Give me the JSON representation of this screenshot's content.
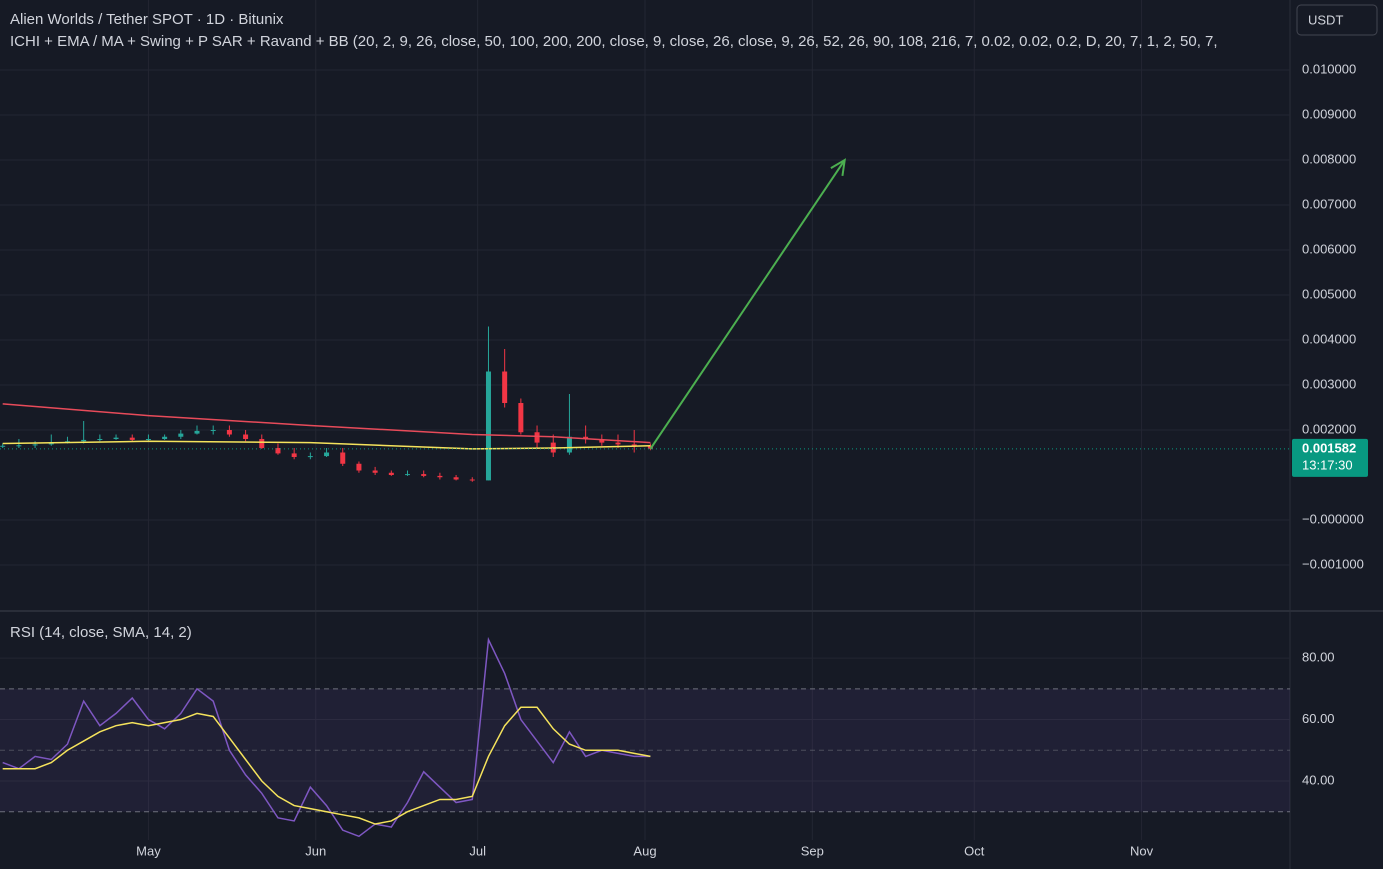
{
  "header": {
    "title": "Alien Worlds / Tether SPOT · 1D · Bitunix",
    "indicators": "ICHI + EMA / MA + Swing + P SAR + Ravand  + BB  (20, 2, 9, 26, close, 50, 100, 200, 200, close, 9, close, 26, close, 9, 26, 52, 26, 90, 108, 216, 7, 0.02, 0.02, 0.2, D, 20, 7, 1, 2, 50, 7,",
    "currency": "USDT"
  },
  "chart_data": [
    {
      "type": "candlestick",
      "x": [
        -27,
        -24,
        -21,
        -18,
        -15,
        -12,
        -9,
        -6,
        -3,
        0,
        3,
        6,
        9,
        12,
        15,
        18,
        21,
        24,
        27,
        30,
        33,
        36,
        39,
        42,
        45,
        48,
        51,
        54,
        57,
        60,
        63,
        66,
        69,
        72,
        75,
        78,
        81,
        84,
        87,
        90,
        93
      ],
      "open": [
        0.00163,
        0.00165,
        0.00166,
        0.00168,
        0.00172,
        0.00175,
        0.00178,
        0.0018,
        0.00183,
        0.00178,
        0.0018,
        0.00185,
        0.00192,
        0.00198,
        0.002,
        0.0019,
        0.0018,
        0.0016,
        0.00148,
        0.0014,
        0.00142,
        0.0015,
        0.00125,
        0.0011,
        0.00105,
        0.001,
        0.00102,
        0.00098,
        0.00095,
        0.0009,
        0.00088,
        0.0033,
        0.0026,
        0.00195,
        0.00172,
        0.0015,
        0.00185,
        0.0018,
        0.00172,
        0.00168,
        0.00165
      ],
      "high": [
        0.0017,
        0.0018,
        0.00175,
        0.0019,
        0.00185,
        0.0022,
        0.0019,
        0.0019,
        0.0019,
        0.0019,
        0.0019,
        0.002,
        0.0021,
        0.0021,
        0.0021,
        0.002,
        0.0019,
        0.0017,
        0.0016,
        0.0015,
        0.0016,
        0.0016,
        0.0013,
        0.00118,
        0.0011,
        0.0011,
        0.0011,
        0.00105,
        0.001,
        0.00095,
        0.0043,
        0.0038,
        0.0027,
        0.0021,
        0.0019,
        0.0028,
        0.0021,
        0.0019,
        0.0019,
        0.002,
        0.0017
      ],
      "low": [
        0.0016,
        0.0016,
        0.0016,
        0.00165,
        0.0017,
        0.0017,
        0.00175,
        0.00178,
        0.00175,
        0.00175,
        0.00178,
        0.0018,
        0.0019,
        0.0019,
        0.00185,
        0.00175,
        0.00158,
        0.00145,
        0.00135,
        0.00135,
        0.0014,
        0.0012,
        0.00105,
        0.001,
        0.00098,
        0.00098,
        0.00095,
        0.0009,
        0.00088,
        0.00085,
        0.00088,
        0.0025,
        0.0019,
        0.0016,
        0.0014,
        0.00145,
        0.0017,
        0.00165,
        0.0016,
        0.0015,
        0.00155
      ],
      "close": [
        0.00165,
        0.00166,
        0.00168,
        0.00172,
        0.00175,
        0.00178,
        0.0018,
        0.00183,
        0.00178,
        0.0018,
        0.00185,
        0.00192,
        0.00198,
        0.002,
        0.0019,
        0.0018,
        0.0016,
        0.00148,
        0.0014,
        0.00142,
        0.0015,
        0.00125,
        0.0011,
        0.00105,
        0.001,
        0.00102,
        0.00098,
        0.00095,
        0.0009,
        0.00088,
        0.0033,
        0.0026,
        0.00195,
        0.00172,
        0.0015,
        0.00185,
        0.0018,
        0.00172,
        0.00168,
        0.00165,
        0.001582
      ],
      "up_color": "#26a69a",
      "down_color": "#f23645",
      "overlays": [
        {
          "color": "#e84b5a",
          "x": [
            -27,
            0,
            30,
            60,
            75,
            93
          ],
          "values": [
            0.00258,
            0.00232,
            0.0021,
            0.0019,
            0.00185,
            0.00172
          ]
        },
        {
          "color": "#f5e35c",
          "x": [
            -27,
            0,
            30,
            60,
            75,
            93
          ],
          "values": [
            0.0017,
            0.00175,
            0.00172,
            0.00158,
            0.0016,
            0.00165
          ]
        }
      ],
      "arrow": {
        "color": "#4caf50",
        "x": [
          93,
          129
        ],
        "y": [
          0.00158,
          0.008
        ]
      },
      "last_price": {
        "value": 0.001582,
        "label": "0.001582",
        "countdown": "13:17:30",
        "color": "#089981"
      },
      "xlim": [
        -27.5,
        211.5
      ],
      "ylim": [
        -0.002,
        0.011556
      ],
      "yticks": [
        {
          "value": 0.01,
          "label": "0.010000"
        },
        {
          "value": 0.009,
          "label": "0.009000"
        },
        {
          "value": 0.008,
          "label": "0.008000"
        },
        {
          "value": 0.007,
          "label": "0.007000"
        },
        {
          "value": 0.006,
          "label": "0.006000"
        },
        {
          "value": 0.005,
          "label": "0.005000"
        },
        {
          "value": 0.004,
          "label": "0.004000"
        },
        {
          "value": 0.003,
          "label": "0.003000"
        },
        {
          "value": 0.002,
          "label": "0.002000"
        },
        {
          "value": 0,
          "label": "−0.000000"
        },
        {
          "value": -0.001,
          "label": "−0.001000"
        }
      ],
      "grid": true
    },
    {
      "type": "line",
      "title": "RSI (14, close, SMA, 14, 2)",
      "x": [
        -27,
        -24,
        -21,
        -18,
        -15,
        -12,
        -9,
        -6,
        -3,
        0,
        3,
        6,
        9,
        12,
        15,
        18,
        21,
        24,
        27,
        30,
        33,
        36,
        39,
        42,
        45,
        48,
        51,
        54,
        57,
        60,
        63,
        66,
        69,
        72,
        75,
        78,
        81,
        84,
        87,
        90,
        93
      ],
      "series": [
        {
          "color": "#7e57c2",
          "values": [
            46,
            44,
            48,
            47,
            52,
            66,
            58,
            62,
            67,
            60,
            57,
            62,
            70,
            66,
            50,
            42,
            36,
            28,
            27,
            38,
            32,
            24,
            22,
            26,
            25,
            33,
            43,
            38,
            33,
            34,
            86,
            75,
            60,
            53,
            46,
            56,
            48,
            50,
            49,
            48,
            48
          ]
        },
        {
          "color": "#f5e35c",
          "values": [
            44,
            44,
            44,
            46,
            50,
            53,
            56,
            58,
            59,
            58,
            59,
            60,
            62,
            61,
            54,
            47,
            40,
            35,
            32,
            31,
            30,
            29,
            28,
            26,
            27,
            30,
            32,
            34,
            34,
            35,
            48,
            58,
            64,
            64,
            57,
            52,
            50,
            50,
            50,
            49,
            48
          ]
        }
      ],
      "bands": [
        70,
        50,
        30
      ],
      "band_color": "#7e57c2",
      "xlim": [
        -27.5,
        211.5
      ],
      "ylim": [
        20.8,
        95
      ],
      "xticks": [
        {
          "value": 0,
          "label": "May"
        },
        {
          "value": 31,
          "label": "Jun"
        },
        {
          "value": 61,
          "label": "Jul"
        },
        {
          "value": 92,
          "label": "Aug"
        },
        {
          "value": 123,
          "label": "Sep"
        },
        {
          "value": 153,
          "label": "Oct"
        },
        {
          "value": 184,
          "label": "Nov"
        }
      ],
      "yticks": [
        {
          "value": 80,
          "label": "80.00"
        },
        {
          "value": 60,
          "label": "60.00"
        },
        {
          "value": 40,
          "label": "40.00"
        }
      ],
      "grid": true
    }
  ]
}
